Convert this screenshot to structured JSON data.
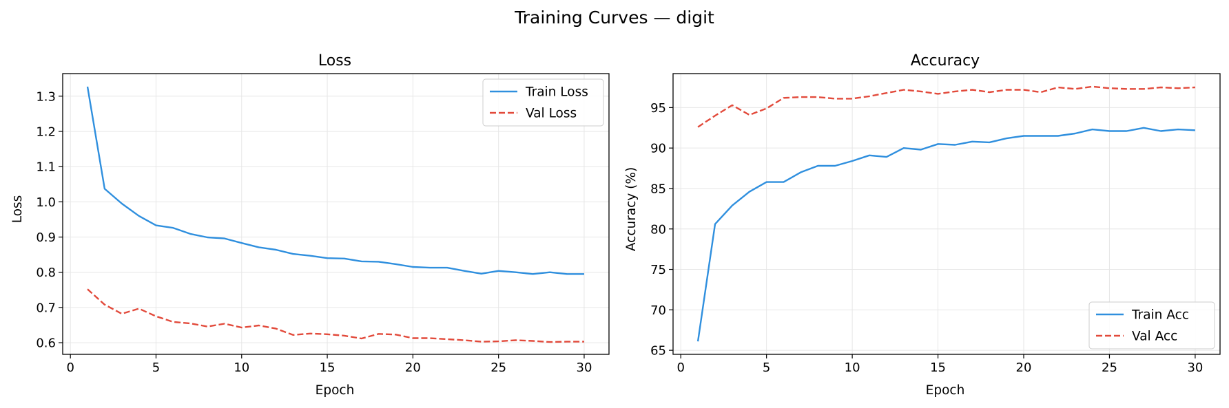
{
  "figure": {
    "title": "Training Curves — digit"
  },
  "chart_data": [
    {
      "type": "line",
      "title": "Loss",
      "xlabel": "Epoch",
      "ylabel": "Loss",
      "xlim": [
        -0.45,
        31.45
      ],
      "ylim": [
        0.567,
        1.364
      ],
      "xticks": [
        0,
        5,
        10,
        15,
        20,
        25,
        30
      ],
      "yticks": [
        0.6,
        0.7,
        0.8,
        0.9,
        1.0,
        1.1,
        1.2,
        1.3
      ],
      "ytick_labels": [
        "0.6",
        "0.7",
        "0.8",
        "0.9",
        "1.0",
        "1.1",
        "1.2",
        "1.3"
      ],
      "grid": true,
      "legend_position": "upper right",
      "x": [
        1,
        2,
        3,
        4,
        5,
        6,
        7,
        8,
        9,
        10,
        11,
        12,
        13,
        14,
        15,
        16,
        17,
        18,
        19,
        20,
        21,
        22,
        23,
        24,
        25,
        26,
        27,
        28,
        29,
        30
      ],
      "series": [
        {
          "name": "Train Loss",
          "color": "#2f8fde",
          "style": "solid",
          "values": [
            1.327,
            1.037,
            0.995,
            0.96,
            0.933,
            0.926,
            0.909,
            0.899,
            0.896,
            0.883,
            0.871,
            0.864,
            0.852,
            0.847,
            0.84,
            0.839,
            0.831,
            0.83,
            0.823,
            0.815,
            0.813,
            0.813,
            0.804,
            0.796,
            0.804,
            0.8,
            0.795,
            0.8,
            0.795,
            0.795
          ]
        },
        {
          "name": "Val Loss",
          "color": "#e24a3b",
          "style": "dashed",
          "values": [
            0.752,
            0.708,
            0.682,
            0.697,
            0.675,
            0.659,
            0.655,
            0.646,
            0.654,
            0.643,
            0.649,
            0.64,
            0.622,
            0.626,
            0.624,
            0.62,
            0.612,
            0.625,
            0.623,
            0.613,
            0.613,
            0.61,
            0.607,
            0.603,
            0.604,
            0.607,
            0.605,
            0.602,
            0.603,
            0.603
          ]
        }
      ]
    },
    {
      "type": "line",
      "title": "Accuracy",
      "xlabel": "Epoch",
      "ylabel": "Accuracy (%)",
      "xlim": [
        -0.45,
        31.45
      ],
      "ylim": [
        64.5,
        99.2
      ],
      "xticks": [
        0,
        5,
        10,
        15,
        20,
        25,
        30
      ],
      "yticks": [
        65,
        70,
        75,
        80,
        85,
        90,
        95
      ],
      "ytick_labels": [
        "65",
        "70",
        "75",
        "80",
        "85",
        "90",
        "95"
      ],
      "grid": true,
      "legend_position": "lower right",
      "x": [
        1,
        2,
        3,
        4,
        5,
        6,
        7,
        8,
        9,
        10,
        11,
        12,
        13,
        14,
        15,
        16,
        17,
        18,
        19,
        20,
        21,
        22,
        23,
        24,
        25,
        26,
        27,
        28,
        29,
        30
      ],
      "series": [
        {
          "name": "Train Acc",
          "color": "#2f8fde",
          "style": "solid",
          "values": [
            66.1,
            80.6,
            82.9,
            84.6,
            85.8,
            85.8,
            87.0,
            87.8,
            87.8,
            88.4,
            89.1,
            88.9,
            90.0,
            89.8,
            90.5,
            90.4,
            90.8,
            90.7,
            91.2,
            91.5,
            91.5,
            91.5,
            91.8,
            92.3,
            92.1,
            92.1,
            92.5,
            92.1,
            92.3,
            92.2
          ]
        },
        {
          "name": "Val Acc",
          "color": "#e24a3b",
          "style": "dashed",
          "values": [
            92.6,
            94.0,
            95.3,
            94.1,
            94.9,
            96.2,
            96.3,
            96.3,
            96.1,
            96.1,
            96.4,
            96.8,
            97.2,
            97.0,
            96.7,
            97.0,
            97.2,
            96.9,
            97.2,
            97.2,
            96.9,
            97.5,
            97.3,
            97.6,
            97.4,
            97.3,
            97.3,
            97.5,
            97.4,
            97.5
          ]
        }
      ]
    }
  ]
}
